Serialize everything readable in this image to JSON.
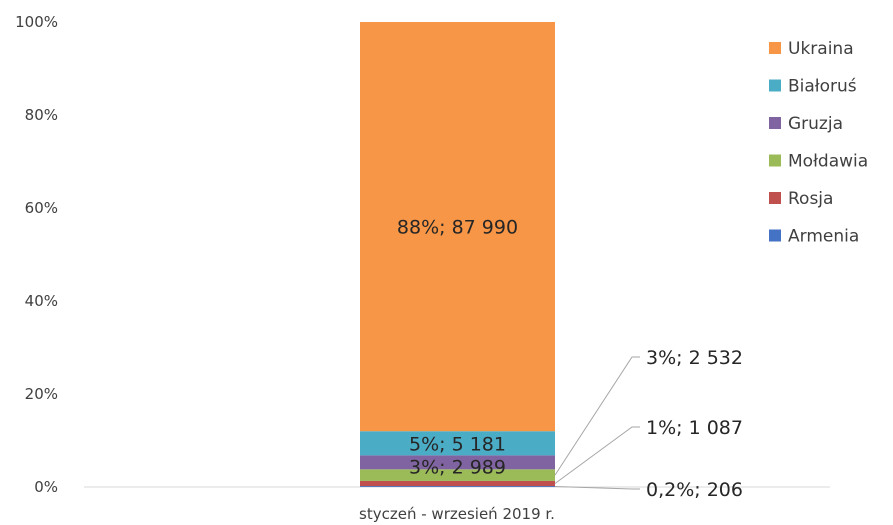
{
  "chart_data": {
    "type": "bar",
    "stacked": "percent",
    "categories": [
      "styczeń - wrzesień 2019 r."
    ],
    "y_ticks": [
      "0%",
      "20%",
      "40%",
      "60%",
      "80%",
      "100%"
    ],
    "ylim": [
      0,
      100
    ],
    "legend_position": "right",
    "series": [
      {
        "name": "Armenia",
        "color": "#4472c4",
        "percent": 0.2,
        "count": 206
      },
      {
        "name": "Rosja",
        "color": "#c0504d",
        "percent": 1.1,
        "count": 1087
      },
      {
        "name": "Mołdawia",
        "color": "#9bbb59",
        "percent": 2.5,
        "count": 2532
      },
      {
        "name": "Gruzja",
        "color": "#8064a2",
        "percent": 3.0,
        "count": 2989
      },
      {
        "name": "Białoruś",
        "color": "#4bacc6",
        "percent": 5.2,
        "count": 5181
      },
      {
        "name": "Ukraina",
        "color": "#f79646",
        "percent": 88.0,
        "count": 87990
      }
    ],
    "data_labels": [
      {
        "series": "Ukraina",
        "text": "88%; 87 990"
      },
      {
        "series": "Białoruś",
        "text": "5%; 5 181"
      },
      {
        "series": "Gruzja",
        "text": "3%; 2 989"
      },
      {
        "series": "Mołdawia",
        "text": "3%; 2 532"
      },
      {
        "series": "Rosja",
        "text": "1%; 1 087"
      },
      {
        "series": "Armenia",
        "text": "0,2%; 206"
      }
    ]
  }
}
